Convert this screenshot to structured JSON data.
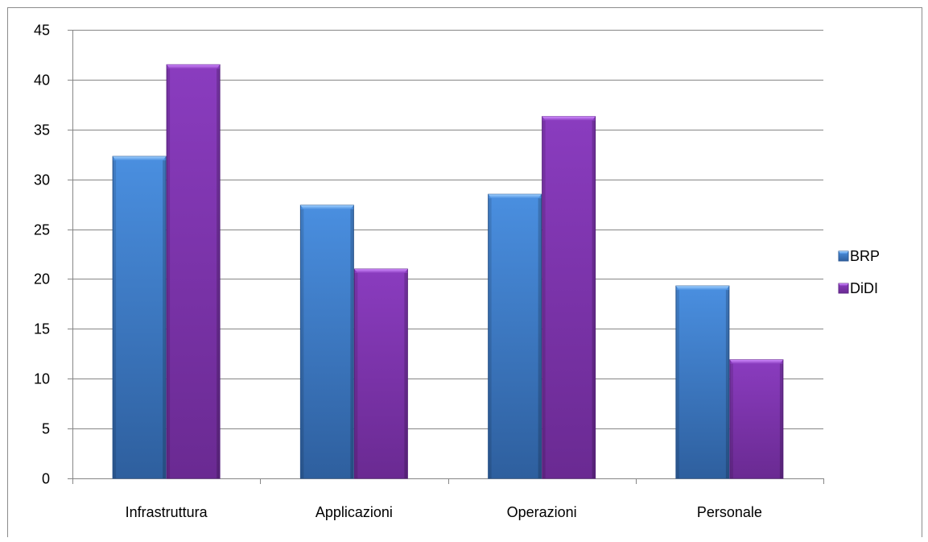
{
  "chart_data": {
    "type": "bar",
    "categories": [
      "Infrastruttura",
      "Applicazioni",
      "Operazioni",
      "Personale"
    ],
    "series": [
      {
        "name": "BRP",
        "values": [
          32.3,
          27.4,
          28.5,
          19.3
        ],
        "color": "#3d7cc9"
      },
      {
        "name": "DiDI",
        "values": [
          41.5,
          21.0,
          36.3,
          11.9
        ],
        "color": "#7b35a8"
      }
    ],
    "ylim": [
      0,
      45
    ],
    "yticks": [
      "0",
      "5",
      "10",
      "15",
      "20",
      "25",
      "30",
      "35",
      "40",
      "45"
    ],
    "grid": true,
    "legend_position": "right",
    "title": "",
    "xlabel": "",
    "ylabel": ""
  }
}
